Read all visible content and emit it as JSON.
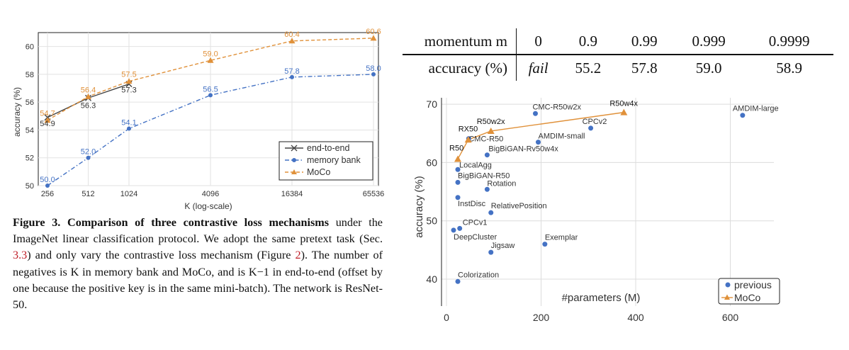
{
  "chart_data": [
    {
      "type": "line",
      "xlabel": "K (log-scale)",
      "ylabel": "accuracy (%)",
      "categories": [
        "256",
        "512",
        "1024",
        "4096",
        "16384",
        "65536"
      ],
      "x": [
        256,
        512,
        1024,
        4096,
        16384,
        65536
      ],
      "xscale": "log",
      "ylim": [
        50,
        61
      ],
      "yticks": [
        50,
        52,
        54,
        56,
        58,
        60
      ],
      "grid": true,
      "legend_position": "bottom-right",
      "series": [
        {
          "name": "end-to-end",
          "marker": "x",
          "color": "#444444",
          "x": [
            256,
            512,
            1024
          ],
          "values": [
            54.9,
            56.3,
            57.3
          ],
          "labels": [
            "54.9",
            "56.3",
            "57.3"
          ]
        },
        {
          "name": "memory bank",
          "marker": "circle",
          "color": "#4472C4",
          "x": [
            256,
            512,
            1024,
            4096,
            16384,
            65536
          ],
          "values": [
            50.0,
            52.0,
            54.1,
            56.5,
            57.8,
            58.0
          ],
          "labels": [
            "50.0",
            "52.0",
            "54.1",
            "56.5",
            "57.8",
            "58.0"
          ]
        },
        {
          "name": "MoCo",
          "marker": "triangle",
          "color": "#E0913A",
          "x": [
            256,
            512,
            1024,
            4096,
            16384,
            65536
          ],
          "values": [
            54.7,
            56.4,
            57.5,
            59.0,
            60.4,
            60.6
          ],
          "labels": [
            "54.7",
            "56.4",
            "57.5",
            "59.0",
            "60.4",
            "60.6"
          ]
        }
      ]
    },
    {
      "type": "scatter",
      "xlabel": "#parameters (M)",
      "ylabel": "accuracy (%)",
      "xlim": [
        0,
        680
      ],
      "ylim": [
        36,
        71
      ],
      "xticks": [
        0,
        200,
        400,
        600
      ],
      "yticks": [
        40,
        50,
        60,
        70
      ],
      "grid": true,
      "legend_position": "bottom-right",
      "series": [
        {
          "name": "previous",
          "marker": "circle",
          "color": "#4472C4",
          "points": [
            {
              "label": "CMC-R50w2x",
              "x": 188,
              "y": 68.4
            },
            {
              "label": "AMDIM-large",
              "x": 626,
              "y": 68.1
            },
            {
              "label": "CPCv2",
              "x": 305,
              "y": 65.9
            },
            {
              "label": "CMC-R50",
              "x": 47,
              "y": 64.1
            },
            {
              "label": "AMDIM-small",
              "x": 194,
              "y": 63.5
            },
            {
              "label": "BigBiGAN-Rv50w4x",
              "x": 86,
              "y": 61.3
            },
            {
              "label": "LocalAgg",
              "x": 24,
              "y": 58.8
            },
            {
              "label": "BigBiGAN-R50",
              "x": 24,
              "y": 56.6
            },
            {
              "label": "Rotation",
              "x": 86,
              "y": 55.4
            },
            {
              "label": "InstDisc",
              "x": 24,
              "y": 54.0
            },
            {
              "label": "RelativePosition",
              "x": 94,
              "y": 51.4
            },
            {
              "label": "CPCv1",
              "x": 28,
              "y": 48.7
            },
            {
              "label": "DeepCluster",
              "x": 15,
              "y": 48.4
            },
            {
              "label": "Exemplar",
              "x": 208,
              "y": 46.0
            },
            {
              "label": "Jigsaw",
              "x": 94,
              "y": 44.6
            },
            {
              "label": "Colorization",
              "x": 24,
              "y": 39.6
            }
          ]
        },
        {
          "name": "MoCo",
          "marker": "triangle",
          "color": "#E0913A",
          "points": [
            {
              "label": "R50",
              "x": 24,
              "y": 60.6
            },
            {
              "label": "RX50",
              "x": 46,
              "y": 63.9
            },
            {
              "label": "R50w2x",
              "x": 94,
              "y": 65.4
            },
            {
              "label": "R50w4x",
              "x": 375,
              "y": 68.6
            }
          ]
        }
      ]
    }
  ],
  "caption": {
    "figure_label": "Figure 3.",
    "bold_title": "Comparison of three contrastive loss mechanisms",
    "text_1": " under the ImageNet linear classification protocol. We adopt the same pretext task (Sec. ",
    "ref_1": "3.3",
    "text_2": ") and only vary the contrastive loss mechanism (Figure ",
    "ref_2": "2",
    "text_3": "). The number of negatives is K in memory bank and MoCo, and is K−1 in end-to-end (offset by one because the positive key is in the same mini-batch). The network is ResNet-50."
  },
  "momentum_table": {
    "header_label": "momentum m",
    "header_values": [
      "0",
      "0.9",
      "0.99",
      "0.999",
      "0.9999"
    ],
    "row_label": "accuracy (%)",
    "row_values": [
      "fail",
      "55.2",
      "57.8",
      "59.0",
      "58.9"
    ]
  }
}
